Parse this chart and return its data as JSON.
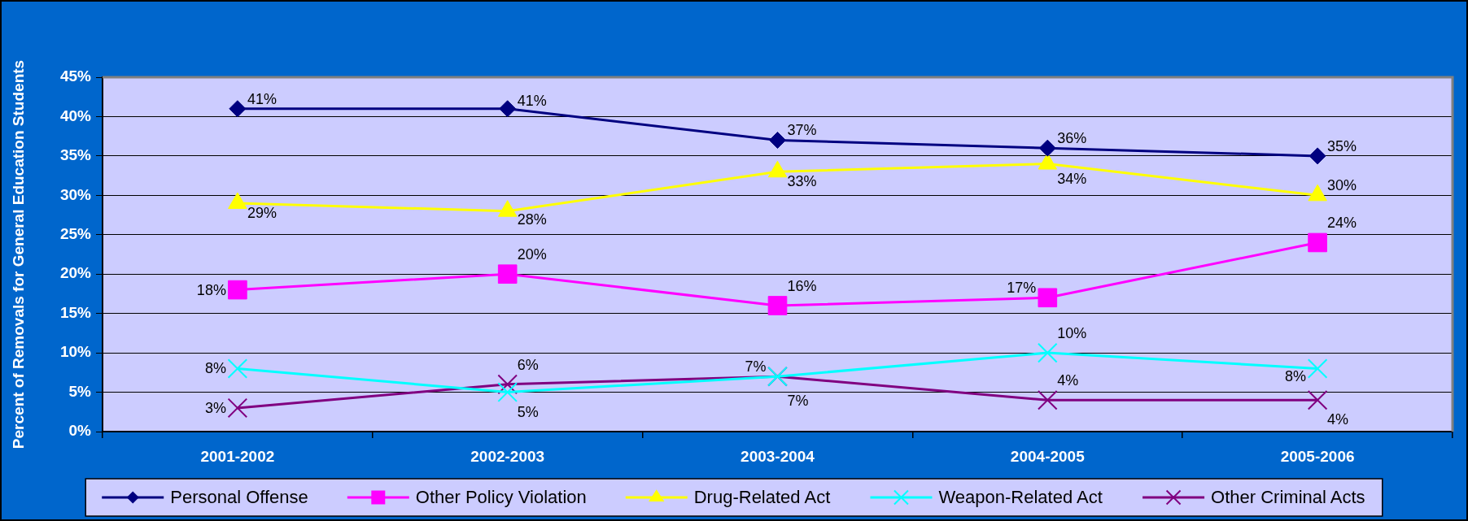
{
  "chart_data": {
    "type": "line",
    "ylabel": "Percent of Removals for General Education Students",
    "categories": [
      "2001-2002",
      "2002-2003",
      "2003-2004",
      "2004-2005",
      "2005-2006"
    ],
    "series": [
      {
        "name": "Personal Offense",
        "color": "#000080",
        "marker": "diamond",
        "values": [
          41,
          41,
          37,
          36,
          35
        ],
        "value_labels": [
          "41%",
          "41%",
          "37%",
          "36%",
          "35%"
        ]
      },
      {
        "name": "Other Policy Violation",
        "color": "#ff00ff",
        "marker": "square",
        "values": [
          18,
          20,
          16,
          17,
          24
        ],
        "value_labels": [
          "18%",
          "20%",
          "16%",
          "17%",
          "24%"
        ]
      },
      {
        "name": "Drug-Related Act",
        "color": "#ffff00",
        "marker": "triangle",
        "values": [
          29,
          28,
          33,
          34,
          30
        ],
        "value_labels": [
          "29%",
          "28%",
          "33%",
          "34%",
          "30%"
        ]
      },
      {
        "name": "Weapon-Related Act",
        "color": "#00ffff",
        "marker": "cross",
        "values": [
          8,
          5,
          7,
          10,
          8
        ],
        "value_labels": [
          "8%",
          "5%",
          "7%",
          "10%",
          "8%"
        ]
      },
      {
        "name": "Other Criminal Acts",
        "color": "#800080",
        "marker": "cross",
        "values": [
          3,
          6,
          7,
          4,
          4
        ],
        "value_labels": [
          "3%",
          "6%",
          "7%",
          "4%",
          "4%"
        ]
      }
    ],
    "ylim": [
      0,
      45
    ],
    "yticks": [
      {
        "value": 0,
        "label": "0%"
      },
      {
        "value": 5,
        "label": "5%"
      },
      {
        "value": 10,
        "label": "10%"
      },
      {
        "value": 15,
        "label": "15%"
      },
      {
        "value": 20,
        "label": "20%"
      },
      {
        "value": 25,
        "label": "25%"
      },
      {
        "value": 30,
        "label": "30%"
      },
      {
        "value": 35,
        "label": "35%"
      },
      {
        "value": 40,
        "label": "40%"
      },
      {
        "value": 45,
        "label": "45%"
      }
    ],
    "grid": "y",
    "legend": "bottom"
  }
}
